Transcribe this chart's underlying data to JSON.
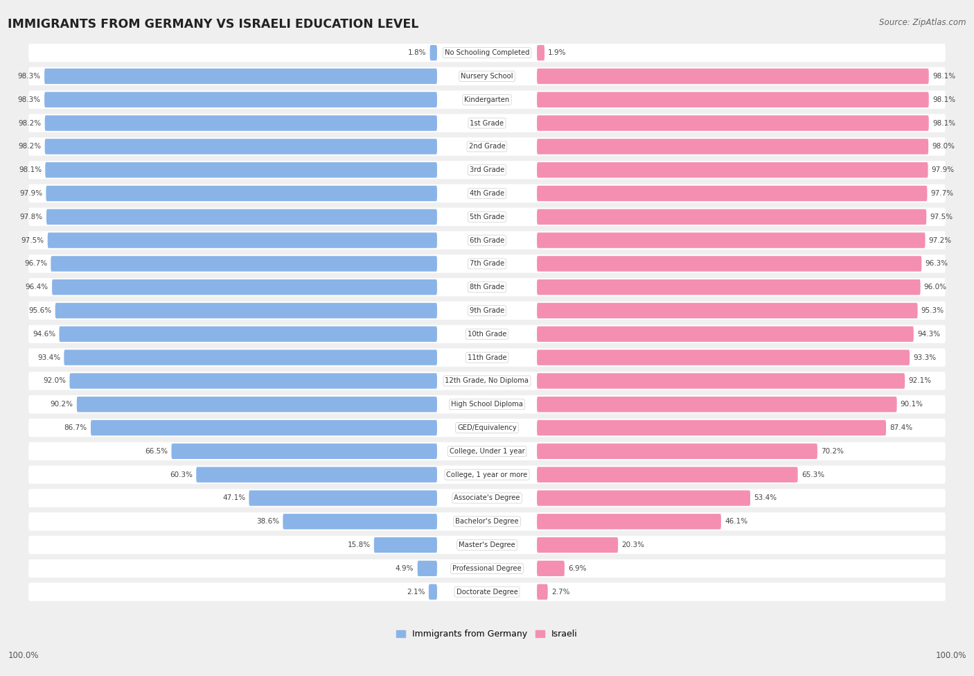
{
  "title": "IMMIGRANTS FROM GERMANY VS ISRAELI EDUCATION LEVEL",
  "source": "Source: ZipAtlas.com",
  "categories": [
    "No Schooling Completed",
    "Nursery School",
    "Kindergarten",
    "1st Grade",
    "2nd Grade",
    "3rd Grade",
    "4th Grade",
    "5th Grade",
    "6th Grade",
    "7th Grade",
    "8th Grade",
    "9th Grade",
    "10th Grade",
    "11th Grade",
    "12th Grade, No Diploma",
    "High School Diploma",
    "GED/Equivalency",
    "College, Under 1 year",
    "College, 1 year or more",
    "Associate's Degree",
    "Bachelor's Degree",
    "Master's Degree",
    "Professional Degree",
    "Doctorate Degree"
  ],
  "germany_values": [
    1.8,
    98.3,
    98.3,
    98.2,
    98.2,
    98.1,
    97.9,
    97.8,
    97.5,
    96.7,
    96.4,
    95.6,
    94.6,
    93.4,
    92.0,
    90.2,
    86.7,
    66.5,
    60.3,
    47.1,
    38.6,
    15.8,
    4.9,
    2.1
  ],
  "israeli_values": [
    1.9,
    98.1,
    98.1,
    98.1,
    98.0,
    97.9,
    97.7,
    97.5,
    97.2,
    96.3,
    96.0,
    95.3,
    94.3,
    93.3,
    92.1,
    90.1,
    87.4,
    70.2,
    65.3,
    53.4,
    46.1,
    20.3,
    6.9,
    2.7
  ],
  "germany_color": "#8ab4e8",
  "israeli_color": "#f48fb1",
  "background_color": "#efefef",
  "row_bg_color": "#ffffff",
  "value_label_color": "#444444",
  "category_label_color": "#333333",
  "title_color": "#222222",
  "source_color": "#666666"
}
